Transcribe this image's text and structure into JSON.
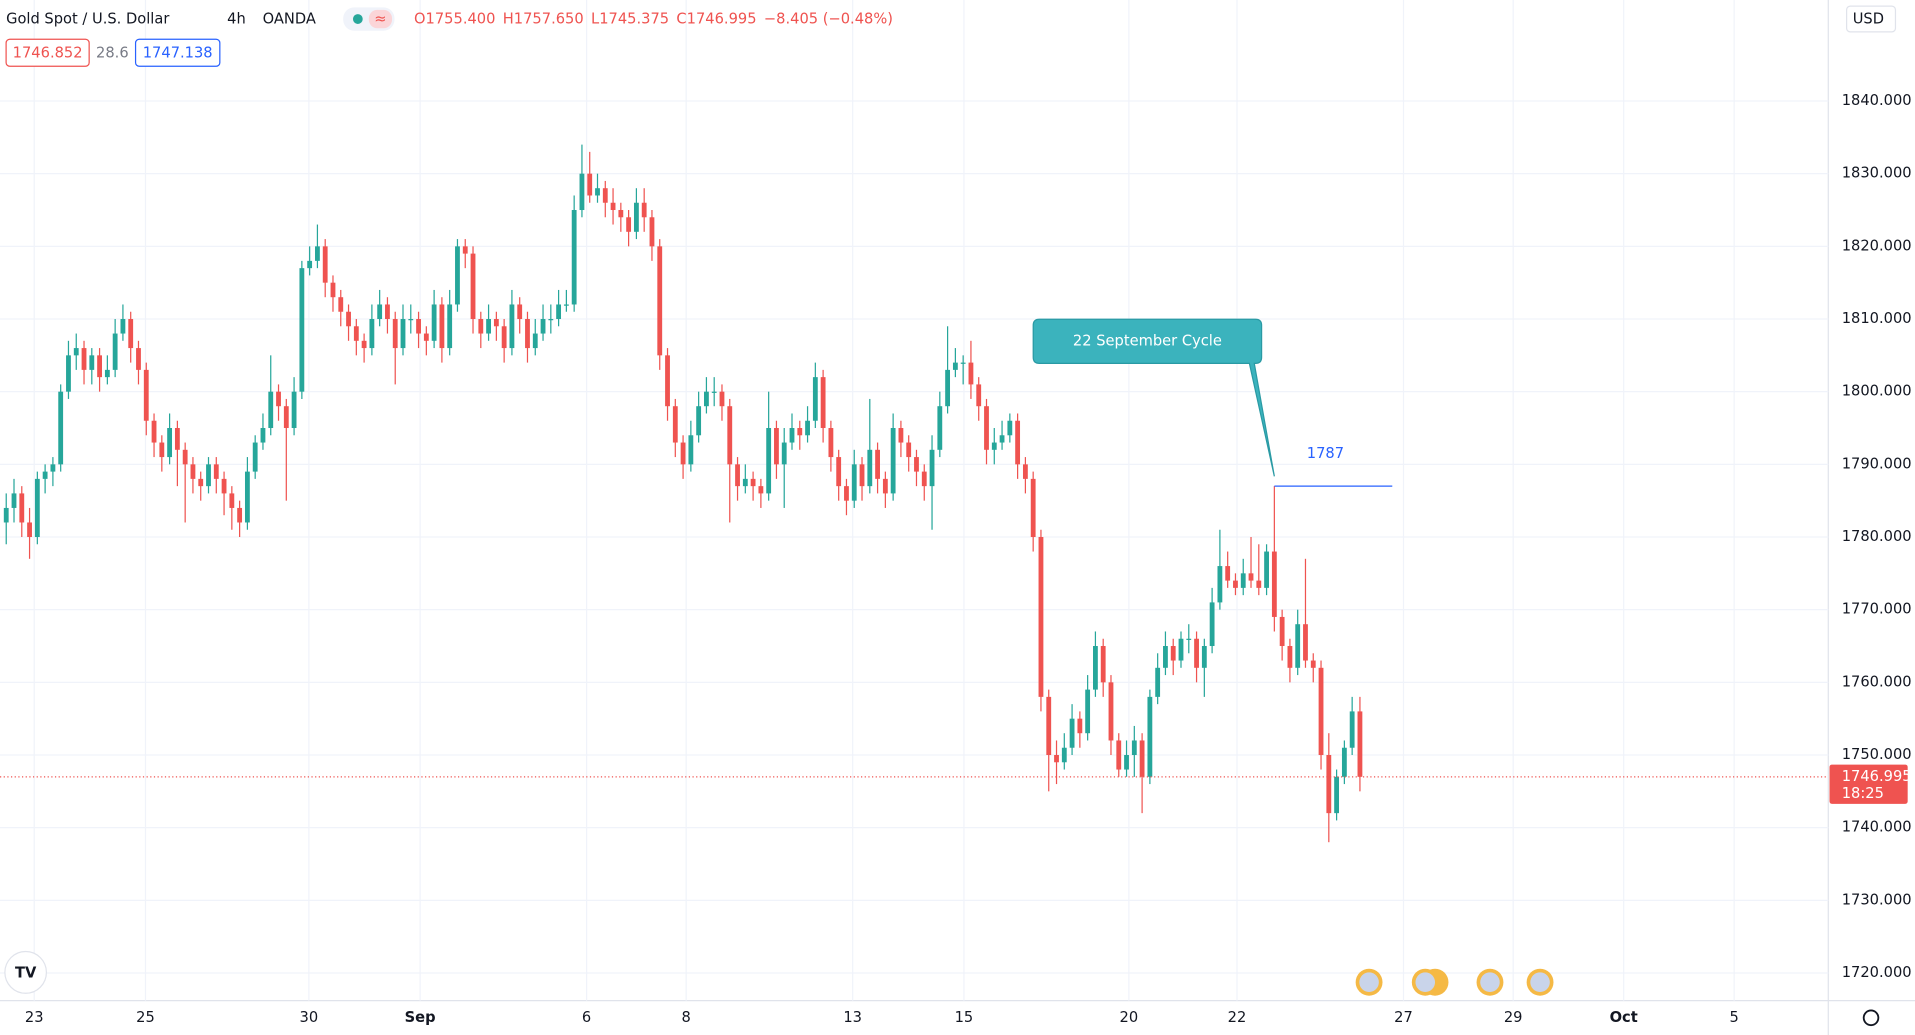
{
  "chart_data": {
    "type": "candlestick",
    "symbol": "Gold Spot / U.S. Dollar",
    "interval": "4h",
    "exchange": "OANDA",
    "ohlc_legend": [
      "O1755.400",
      "H1757.650",
      "L1745.375",
      "C1746.995",
      "−8.405 (−0.48%)"
    ],
    "bid": "1746.852",
    "spread": "28.6",
    "ask": "1747.138",
    "currency": "USD",
    "up_color": "#26a69a",
    "down_color": "#ef5350",
    "annotation": "22 September Cycle",
    "level": {
      "value": 1787,
      "label": "1787",
      "color": "#2962ff"
    },
    "last": {
      "value": 1746.995,
      "label": "1746.995",
      "countdown": "18:25"
    },
    "xlim": [
      -0.8,
      234.2
    ],
    "xticks": [
      {
        "value": 3.6,
        "label": "23"
      },
      {
        "value": 17.9,
        "label": "25"
      },
      {
        "value": 38.9,
        "label": "30"
      },
      {
        "value": 53.2,
        "label": "Sep"
      },
      {
        "value": 74.6,
        "label": "6"
      },
      {
        "value": 87.4,
        "label": "8"
      },
      {
        "value": 108.8,
        "label": "13"
      },
      {
        "value": 123.1,
        "label": "15"
      },
      {
        "value": 144.3,
        "label": "20"
      },
      {
        "value": 158.2,
        "label": "22"
      },
      {
        "value": 179.6,
        "label": "27"
      },
      {
        "value": 193.7,
        "label": "29"
      },
      {
        "value": 207.9,
        "label": "Oct"
      },
      {
        "value": 222.1,
        "label": "5"
      }
    ],
    "ylim": [
      1716.2,
      1853.9
    ],
    "yticks": [
      {
        "value": 1720,
        "label": "1720.000"
      },
      {
        "value": 1730,
        "label": "1730.000"
      },
      {
        "value": 1740,
        "label": "1740.000"
      },
      {
        "value": 1750,
        "label": "1750.000"
      },
      {
        "value": 1760,
        "label": "1760.000"
      },
      {
        "value": 1770,
        "label": "1770.000"
      },
      {
        "value": 1780,
        "label": "1780.000"
      },
      {
        "value": 1790,
        "label": "1790.000"
      },
      {
        "value": 1800,
        "label": "1800.000"
      },
      {
        "value": 1810,
        "label": "1810.000"
      },
      {
        "value": 1820,
        "label": "1820.000"
      },
      {
        "value": 1830,
        "label": "1830.000"
      },
      {
        "value": 1840,
        "label": "1840.000"
      }
    ],
    "grid": true,
    "ohlc": [
      [
        1782,
        1786,
        1779,
        1784
      ],
      [
        1784,
        1788,
        1782,
        1786
      ],
      [
        1786,
        1787,
        1780,
        1782
      ],
      [
        1782,
        1784,
        1777,
        1780
      ],
      [
        1780,
        1789,
        1779,
        1788
      ],
      [
        1788,
        1790,
        1786,
        1789
      ],
      [
        1789,
        1791,
        1787,
        1790
      ],
      [
        1790,
        1801,
        1789,
        1800
      ],
      [
        1800,
        1807,
        1799,
        1805
      ],
      [
        1805,
        1808,
        1803,
        1806
      ],
      [
        1806,
        1807,
        1801,
        1803
      ],
      [
        1803,
        1806,
        1801,
        1805
      ],
      [
        1805,
        1806,
        1800,
        1802
      ],
      [
        1802,
        1805,
        1801,
        1803
      ],
      [
        1803,
        1810,
        1802,
        1808
      ],
      [
        1808,
        1812,
        1807,
        1810
      ],
      [
        1810,
        1811,
        1804,
        1806
      ],
      [
        1806,
        1807,
        1801,
        1803
      ],
      [
        1803,
        1804,
        1794,
        1796
      ],
      [
        1796,
        1797,
        1791,
        1793
      ],
      [
        1793,
        1794,
        1789,
        1791
      ],
      [
        1791,
        1797,
        1790,
        1795
      ],
      [
        1795,
        1796,
        1787,
        1792
      ],
      [
        1792,
        1793,
        1782,
        1790
      ],
      [
        1790,
        1791,
        1786,
        1788
      ],
      [
        1788,
        1789,
        1785,
        1787
      ],
      [
        1787,
        1791,
        1786,
        1790
      ],
      [
        1790,
        1791,
        1786,
        1788
      ],
      [
        1788,
        1789,
        1783,
        1786
      ],
      [
        1786,
        1787,
        1781,
        1784
      ],
      [
        1784,
        1785,
        1780,
        1782
      ],
      [
        1782,
        1791,
        1781,
        1789
      ],
      [
        1789,
        1794,
        1788,
        1793
      ],
      [
        1793,
        1797,
        1792,
        1795
      ],
      [
        1795,
        1805,
        1794,
        1800
      ],
      [
        1800,
        1801,
        1796,
        1798
      ],
      [
        1798,
        1799,
        1785,
        1795
      ],
      [
        1795,
        1802,
        1794,
        1800
      ],
      [
        1800,
        1818,
        1799,
        1817
      ],
      [
        1817,
        1820,
        1816,
        1818
      ],
      [
        1818,
        1823,
        1817,
        1820
      ],
      [
        1820,
        1821,
        1813,
        1815
      ],
      [
        1815,
        1816,
        1811,
        1813
      ],
      [
        1813,
        1814,
        1809,
        1811
      ],
      [
        1811,
        1812,
        1807,
        1809
      ],
      [
        1809,
        1810,
        1805,
        1807
      ],
      [
        1807,
        1808,
        1804,
        1806
      ],
      [
        1806,
        1812,
        1805,
        1810
      ],
      [
        1810,
        1814,
        1809,
        1812
      ],
      [
        1812,
        1813,
        1808,
        1810
      ],
      [
        1810,
        1811,
        1801,
        1806
      ],
      [
        1806,
        1812,
        1805,
        1810
      ],
      [
        1810,
        1812,
        1808,
        1810
      ],
      [
        1810,
        1811,
        1806,
        1808
      ],
      [
        1808,
        1809,
        1805,
        1807
      ],
      [
        1807,
        1814,
        1806,
        1812
      ],
      [
        1812,
        1813,
        1804,
        1806
      ],
      [
        1806,
        1814,
        1805,
        1812
      ],
      [
        1812,
        1821,
        1811,
        1820
      ],
      [
        1820,
        1821,
        1817,
        1819
      ],
      [
        1819,
        1820,
        1808,
        1810
      ],
      [
        1810,
        1811,
        1806,
        1808
      ],
      [
        1808,
        1812,
        1807,
        1810
      ],
      [
        1810,
        1811,
        1807,
        1809
      ],
      [
        1809,
        1810,
        1804,
        1806
      ],
      [
        1806,
        1814,
        1805,
        1812
      ],
      [
        1812,
        1813,
        1808,
        1810
      ],
      [
        1810,
        1811,
        1804,
        1806
      ],
      [
        1806,
        1810,
        1805,
        1808
      ],
      [
        1808,
        1812,
        1807,
        1810
      ],
      [
        1810,
        1812,
        1808,
        1810
      ],
      [
        1810,
        1814,
        1809,
        1812
      ],
      [
        1812,
        1814,
        1811,
        1812
      ],
      [
        1812,
        1827,
        1811,
        1825
      ],
      [
        1825,
        1834,
        1824,
        1830
      ],
      [
        1830,
        1833,
        1826,
        1827
      ],
      [
        1827,
        1830,
        1826,
        1828
      ],
      [
        1828,
        1829,
        1824,
        1826
      ],
      [
        1826,
        1828,
        1823,
        1825
      ],
      [
        1825,
        1826,
        1822,
        1824
      ],
      [
        1824,
        1825,
        1820,
        1822
      ],
      [
        1822,
        1828,
        1821,
        1826
      ],
      [
        1826,
        1828,
        1822,
        1824
      ],
      [
        1824,
        1825,
        1818,
        1820
      ],
      [
        1820,
        1821,
        1803,
        1805
      ],
      [
        1805,
        1806,
        1796,
        1798
      ],
      [
        1798,
        1799,
        1791,
        1793
      ],
      [
        1793,
        1794,
        1788,
        1790
      ],
      [
        1790,
        1796,
        1789,
        1794
      ],
      [
        1794,
        1800,
        1793,
        1798
      ],
      [
        1798,
        1802,
        1797,
        1800
      ],
      [
        1800,
        1802,
        1798,
        1800
      ],
      [
        1800,
        1801,
        1796,
        1798
      ],
      [
        1798,
        1799,
        1782,
        1790
      ],
      [
        1790,
        1791,
        1785,
        1787
      ],
      [
        1787,
        1790,
        1786,
        1788
      ],
      [
        1788,
        1789,
        1785,
        1787
      ],
      [
        1787,
        1788,
        1784,
        1786
      ],
      [
        1786,
        1800,
        1785,
        1795
      ],
      [
        1795,
        1796,
        1788,
        1790
      ],
      [
        1790,
        1795,
        1784,
        1793
      ],
      [
        1793,
        1797,
        1792,
        1795
      ],
      [
        1795,
        1796,
        1792,
        1794
      ],
      [
        1794,
        1798,
        1793,
        1796
      ],
      [
        1796,
        1804,
        1795,
        1802
      ],
      [
        1802,
        1803,
        1793,
        1795
      ],
      [
        1795,
        1796,
        1789,
        1791
      ],
      [
        1791,
        1792,
        1785,
        1787
      ],
      [
        1787,
        1788,
        1783,
        1785
      ],
      [
        1785,
        1792,
        1784,
        1790
      ],
      [
        1790,
        1791,
        1785,
        1787
      ],
      [
        1787,
        1799,
        1786,
        1792
      ],
      [
        1792,
        1793,
        1786,
        1788
      ],
      [
        1788,
        1789,
        1784,
        1786
      ],
      [
        1786,
        1797,
        1785,
        1795
      ],
      [
        1795,
        1796,
        1791,
        1793
      ],
      [
        1793,
        1794,
        1789,
        1791
      ],
      [
        1791,
        1792,
        1787,
        1789
      ],
      [
        1789,
        1790,
        1785,
        1787
      ],
      [
        1787,
        1794,
        1781,
        1792
      ],
      [
        1792,
        1800,
        1791,
        1798
      ],
      [
        1798,
        1809,
        1797,
        1803
      ],
      [
        1803,
        1806,
        1802,
        1804
      ],
      [
        1804,
        1805,
        1801,
        1804
      ],
      [
        1804,
        1807,
        1799,
        1801
      ],
      [
        1801,
        1802,
        1796,
        1798
      ],
      [
        1798,
        1799,
        1790,
        1792
      ],
      [
        1792,
        1795,
        1790,
        1793
      ],
      [
        1793,
        1796,
        1792,
        1794
      ],
      [
        1794,
        1797,
        1793,
        1796
      ],
      [
        1796,
        1797,
        1788,
        1790
      ],
      [
        1790,
        1791,
        1786,
        1788
      ],
      [
        1788,
        1789,
        1778,
        1780
      ],
      [
        1780,
        1781,
        1756,
        1758
      ],
      [
        1758,
        1759,
        1745,
        1750
      ],
      [
        1750,
        1752,
        1746,
        1749
      ],
      [
        1749,
        1753,
        1748,
        1751
      ],
      [
        1751,
        1757,
        1750,
        1755
      ],
      [
        1755,
        1756,
        1751,
        1753
      ],
      [
        1753,
        1761,
        1752,
        1759
      ],
      [
        1759,
        1767,
        1758,
        1765
      ],
      [
        1765,
        1766,
        1758,
        1760
      ],
      [
        1760,
        1761,
        1750,
        1752
      ],
      [
        1752,
        1753,
        1747,
        1748
      ],
      [
        1748,
        1752,
        1747,
        1750
      ],
      [
        1750,
        1754,
        1747,
        1752
      ],
      [
        1752,
        1753,
        1742,
        1747
      ],
      [
        1747,
        1759,
        1746,
        1758
      ],
      [
        1758,
        1764,
        1757,
        1762
      ],
      [
        1762,
        1767,
        1761,
        1765
      ],
      [
        1765,
        1766,
        1761,
        1763
      ],
      [
        1763,
        1767,
        1762,
        1766
      ],
      [
        1766,
        1768,
        1764,
        1766
      ],
      [
        1766,
        1767,
        1760,
        1762
      ],
      [
        1762,
        1766,
        1758,
        1765
      ],
      [
        1765,
        1773,
        1764,
        1771
      ],
      [
        1771,
        1781,
        1770,
        1776
      ],
      [
        1776,
        1778,
        1773,
        1774
      ],
      [
        1774,
        1775,
        1772,
        1773
      ],
      [
        1773,
        1777,
        1772,
        1775
      ],
      [
        1775,
        1780,
        1773,
        1774
      ],
      [
        1774,
        1779,
        1772,
        1773
      ],
      [
        1773,
        1779,
        1772,
        1778
      ],
      [
        1778,
        1787,
        1767,
        1769
      ],
      [
        1769,
        1770,
        1763,
        1765
      ],
      [
        1765,
        1766,
        1760,
        1762
      ],
      [
        1762,
        1770,
        1761,
        1768
      ],
      [
        1768,
        1777,
        1762,
        1763
      ],
      [
        1763,
        1764,
        1760,
        1762
      ],
      [
        1762,
        1763,
        1748,
        1750
      ],
      [
        1750,
        1753,
        1738,
        1742
      ],
      [
        1742,
        1748,
        1741,
        1747
      ],
      [
        1747,
        1752,
        1746,
        1751
      ],
      [
        1751,
        1758,
        1750,
        1756
      ],
      [
        1756,
        1758,
        1745,
        1747
      ]
    ]
  }
}
